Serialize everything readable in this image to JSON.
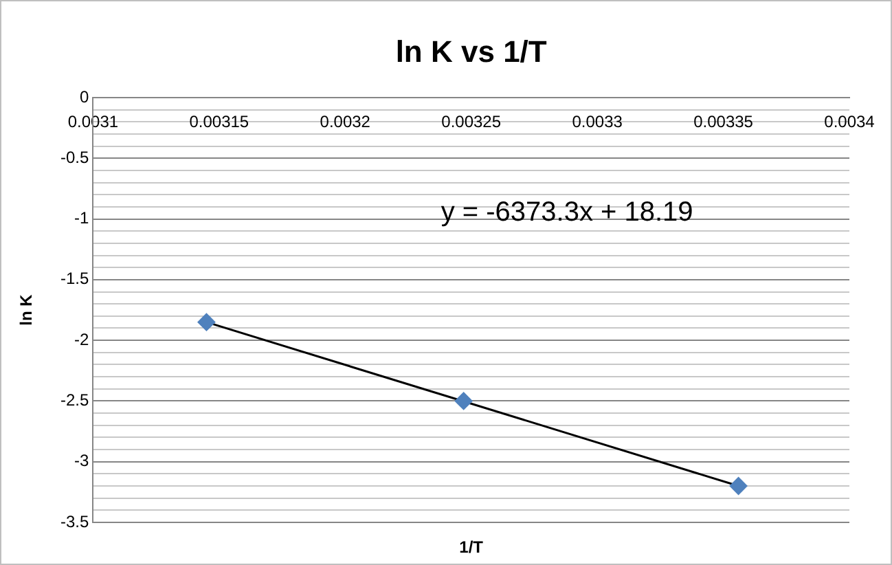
{
  "chart_data": {
    "type": "scatter",
    "title": "ln K vs 1/T",
    "xlabel": "1/T",
    "ylabel": "ln K",
    "annotations": [
      "y = -6373.3x + 18.19"
    ],
    "series": [
      {
        "color": "#4f81bd",
        "marker": "diamond",
        "x": [
          0.003145,
          0.003247,
          0.003356
        ],
        "values": [
          -1.85,
          -2.5,
          -3.2
        ]
      },
      {
        "type": "line",
        "color": "#000000",
        "marker": "none",
        "x": [
          0.003145,
          0.003356
        ],
        "values": [
          -1.85,
          -3.2
        ]
      }
    ],
    "xlim": [
      0.0031,
      0.0034
    ],
    "xticks": [
      0.0031,
      0.00315,
      0.0032,
      0.00325,
      0.0033,
      0.00335,
      0.0034
    ],
    "ylim": [
      -3.5,
      0
    ],
    "yticks": [
      -3.5,
      {
        "value": -3.4,
        "label": null
      },
      {
        "value": -3.3,
        "label": null
      },
      {
        "value": -3.2,
        "label": null
      },
      {
        "value": -3.1,
        "label": null
      },
      -3,
      {
        "value": -2.9,
        "label": null
      },
      {
        "value": -2.8,
        "label": null
      },
      {
        "value": -2.7,
        "label": null
      },
      {
        "value": -2.6,
        "label": null
      },
      -2.5,
      {
        "value": -2.4,
        "label": null
      },
      {
        "value": -2.3,
        "label": null
      },
      {
        "value": -2.2,
        "label": null
      },
      {
        "value": -2.1,
        "label": null
      },
      -2,
      {
        "value": -1.9,
        "label": null
      },
      {
        "value": -1.8,
        "label": null
      },
      {
        "value": -1.7,
        "label": null
      },
      {
        "value": -1.6,
        "label": null
      },
      -1.5,
      {
        "value": -1.4,
        "label": null
      },
      {
        "value": -1.3,
        "label": null
      },
      {
        "value": -1.2,
        "label": null
      },
      {
        "value": -1.1,
        "label": null
      },
      -1,
      {
        "value": -0.9,
        "label": null
      },
      {
        "value": -0.8,
        "label": null
      },
      {
        "value": -0.7,
        "label": null
      },
      {
        "value": -0.6,
        "label": null
      },
      -0.5,
      {
        "value": -0.4,
        "label": null
      },
      {
        "value": -0.3,
        "label": null
      },
      {
        "value": -0.2,
        "label": null
      },
      {
        "value": -0.1,
        "label": null
      },
      0
    ],
    "grid": "y",
    "legend": false
  }
}
